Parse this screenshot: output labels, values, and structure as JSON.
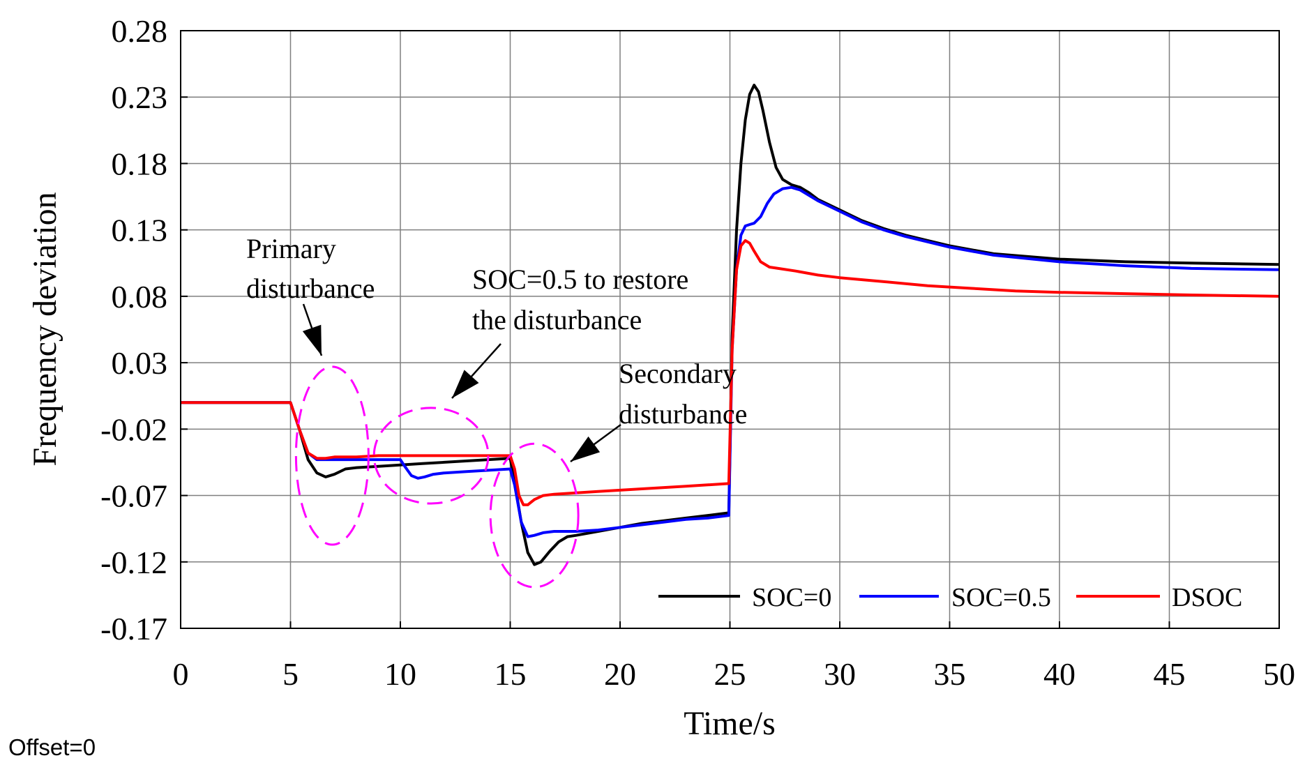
{
  "footer_text": "Offset=0",
  "colors": {
    "soc0": "#000000",
    "soc05": "#0000ff",
    "dsoc": "#ff0000",
    "highlight": "#ff00ff",
    "grid": "#7f7f7f",
    "axis": "#000000"
  },
  "annotations": {
    "primary_line1": "Primary",
    "primary_line2": "disturbance",
    "restore_line1": "SOC=0.5 to restore",
    "restore_line2": "the disturbance",
    "secondary_line1": "Secondary",
    "secondary_line2": "disturbance"
  },
  "chart_data": {
    "type": "line",
    "xlabel": "Time/s",
    "ylabel": "Frequency deviation",
    "xlim": [
      0,
      50
    ],
    "ylim": [
      -0.17,
      0.28
    ],
    "xticks": [
      0,
      5,
      10,
      15,
      20,
      25,
      30,
      35,
      40,
      45,
      50
    ],
    "yticks": [
      -0.17,
      -0.12,
      -0.07,
      -0.02,
      0.03,
      0.08,
      0.13,
      0.18,
      0.23,
      0.28
    ],
    "ytick_labels": [
      "-0.17",
      "-0.12",
      "-0.07",
      "-0.02",
      "0.03",
      "0.08",
      "0.13",
      "0.18",
      "0.23",
      "0.28"
    ],
    "grid": true,
    "legend_position": "bottom-right",
    "series": [
      {
        "name": "SOC=0",
        "color": "#000000",
        "x": [
          0,
          5,
          5.4,
          5.8,
          6.2,
          6.6,
          7.0,
          7.5,
          8.0,
          9.0,
          10,
          11,
          12,
          13,
          14,
          15,
          15.2,
          15.5,
          15.8,
          16.1,
          16.4,
          16.8,
          17.2,
          17.6,
          18,
          19,
          20,
          21,
          22,
          23,
          24,
          24.95,
          25.1,
          25.3,
          25.5,
          25.7,
          25.9,
          26.1,
          26.3,
          26.5,
          26.8,
          27.1,
          27.4,
          27.8,
          28.2,
          28.6,
          29,
          30,
          31,
          32,
          33,
          34,
          35,
          37,
          40,
          43,
          46,
          50
        ],
        "y": [
          0,
          0,
          -0.02,
          -0.043,
          -0.053,
          -0.056,
          -0.054,
          -0.05,
          -0.049,
          -0.048,
          -0.047,
          -0.046,
          -0.045,
          -0.044,
          -0.043,
          -0.042,
          -0.06,
          -0.09,
          -0.113,
          -0.122,
          -0.12,
          -0.112,
          -0.105,
          -0.101,
          -0.1,
          -0.097,
          -0.094,
          -0.091,
          -0.089,
          -0.087,
          -0.085,
          -0.083,
          0.05,
          0.13,
          0.18,
          0.213,
          0.232,
          0.239,
          0.234,
          0.22,
          0.196,
          0.177,
          0.168,
          0.164,
          0.162,
          0.158,
          0.153,
          0.145,
          0.137,
          0.131,
          0.126,
          0.122,
          0.118,
          0.112,
          0.108,
          0.106,
          0.105,
          0.104
        ]
      },
      {
        "name": "SOC=0.5",
        "color": "#0000ff",
        "x": [
          0,
          5,
          5.4,
          5.8,
          6.2,
          6.6,
          7.0,
          8.0,
          9.0,
          10,
          10.2,
          10.5,
          10.8,
          11.1,
          11.5,
          12,
          13,
          14,
          15,
          15.2,
          15.5,
          15.8,
          16.1,
          16.5,
          17,
          17.5,
          18,
          19,
          20,
          21,
          22,
          23,
          24,
          24.95,
          25.1,
          25.3,
          25.5,
          25.7,
          25.9,
          26.1,
          26.4,
          26.7,
          27,
          27.4,
          27.8,
          28.2,
          28.6,
          29,
          30,
          31,
          32,
          33,
          34,
          35,
          37,
          40,
          43,
          46,
          50
        ],
        "y": [
          0,
          0,
          -0.02,
          -0.038,
          -0.043,
          -0.043,
          -0.043,
          -0.043,
          -0.043,
          -0.043,
          -0.048,
          -0.055,
          -0.057,
          -0.056,
          -0.054,
          -0.053,
          -0.052,
          -0.051,
          -0.05,
          -0.062,
          -0.09,
          -0.101,
          -0.1,
          -0.098,
          -0.097,
          -0.097,
          -0.097,
          -0.096,
          -0.094,
          -0.092,
          -0.09,
          -0.088,
          -0.087,
          -0.085,
          0.04,
          0.1,
          0.126,
          0.133,
          0.134,
          0.135,
          0.14,
          0.15,
          0.157,
          0.161,
          0.162,
          0.16,
          0.156,
          0.152,
          0.144,
          0.136,
          0.13,
          0.125,
          0.121,
          0.117,
          0.111,
          0.106,
          0.103,
          0.101,
          0.1
        ]
      },
      {
        "name": "DSOC",
        "color": "#ff0000",
        "x": [
          0,
          5,
          5.4,
          5.8,
          6.2,
          6.6,
          7.0,
          8.0,
          9.0,
          10,
          11,
          12,
          13,
          14,
          15,
          15.2,
          15.4,
          15.6,
          15.8,
          16.1,
          16.5,
          17,
          18,
          19,
          20,
          21,
          22,
          23,
          24,
          24.95,
          25.1,
          25.3,
          25.5,
          25.7,
          25.9,
          26.1,
          26.4,
          26.8,
          27.2,
          28,
          29,
          30,
          32,
          34,
          36,
          38,
          40,
          43,
          46,
          50
        ],
        "y": [
          0,
          0,
          -0.02,
          -0.038,
          -0.042,
          -0.042,
          -0.041,
          -0.041,
          -0.04,
          -0.04,
          -0.04,
          -0.04,
          -0.04,
          -0.04,
          -0.04,
          -0.05,
          -0.07,
          -0.077,
          -0.077,
          -0.073,
          -0.07,
          -0.069,
          -0.068,
          -0.067,
          -0.066,
          -0.065,
          -0.064,
          -0.063,
          -0.062,
          -0.061,
          0.04,
          0.1,
          0.118,
          0.122,
          0.12,
          0.114,
          0.106,
          0.102,
          0.101,
          0.099,
          0.096,
          0.094,
          0.091,
          0.088,
          0.086,
          0.084,
          0.083,
          0.082,
          0.081,
          0.08
        ]
      }
    ]
  }
}
